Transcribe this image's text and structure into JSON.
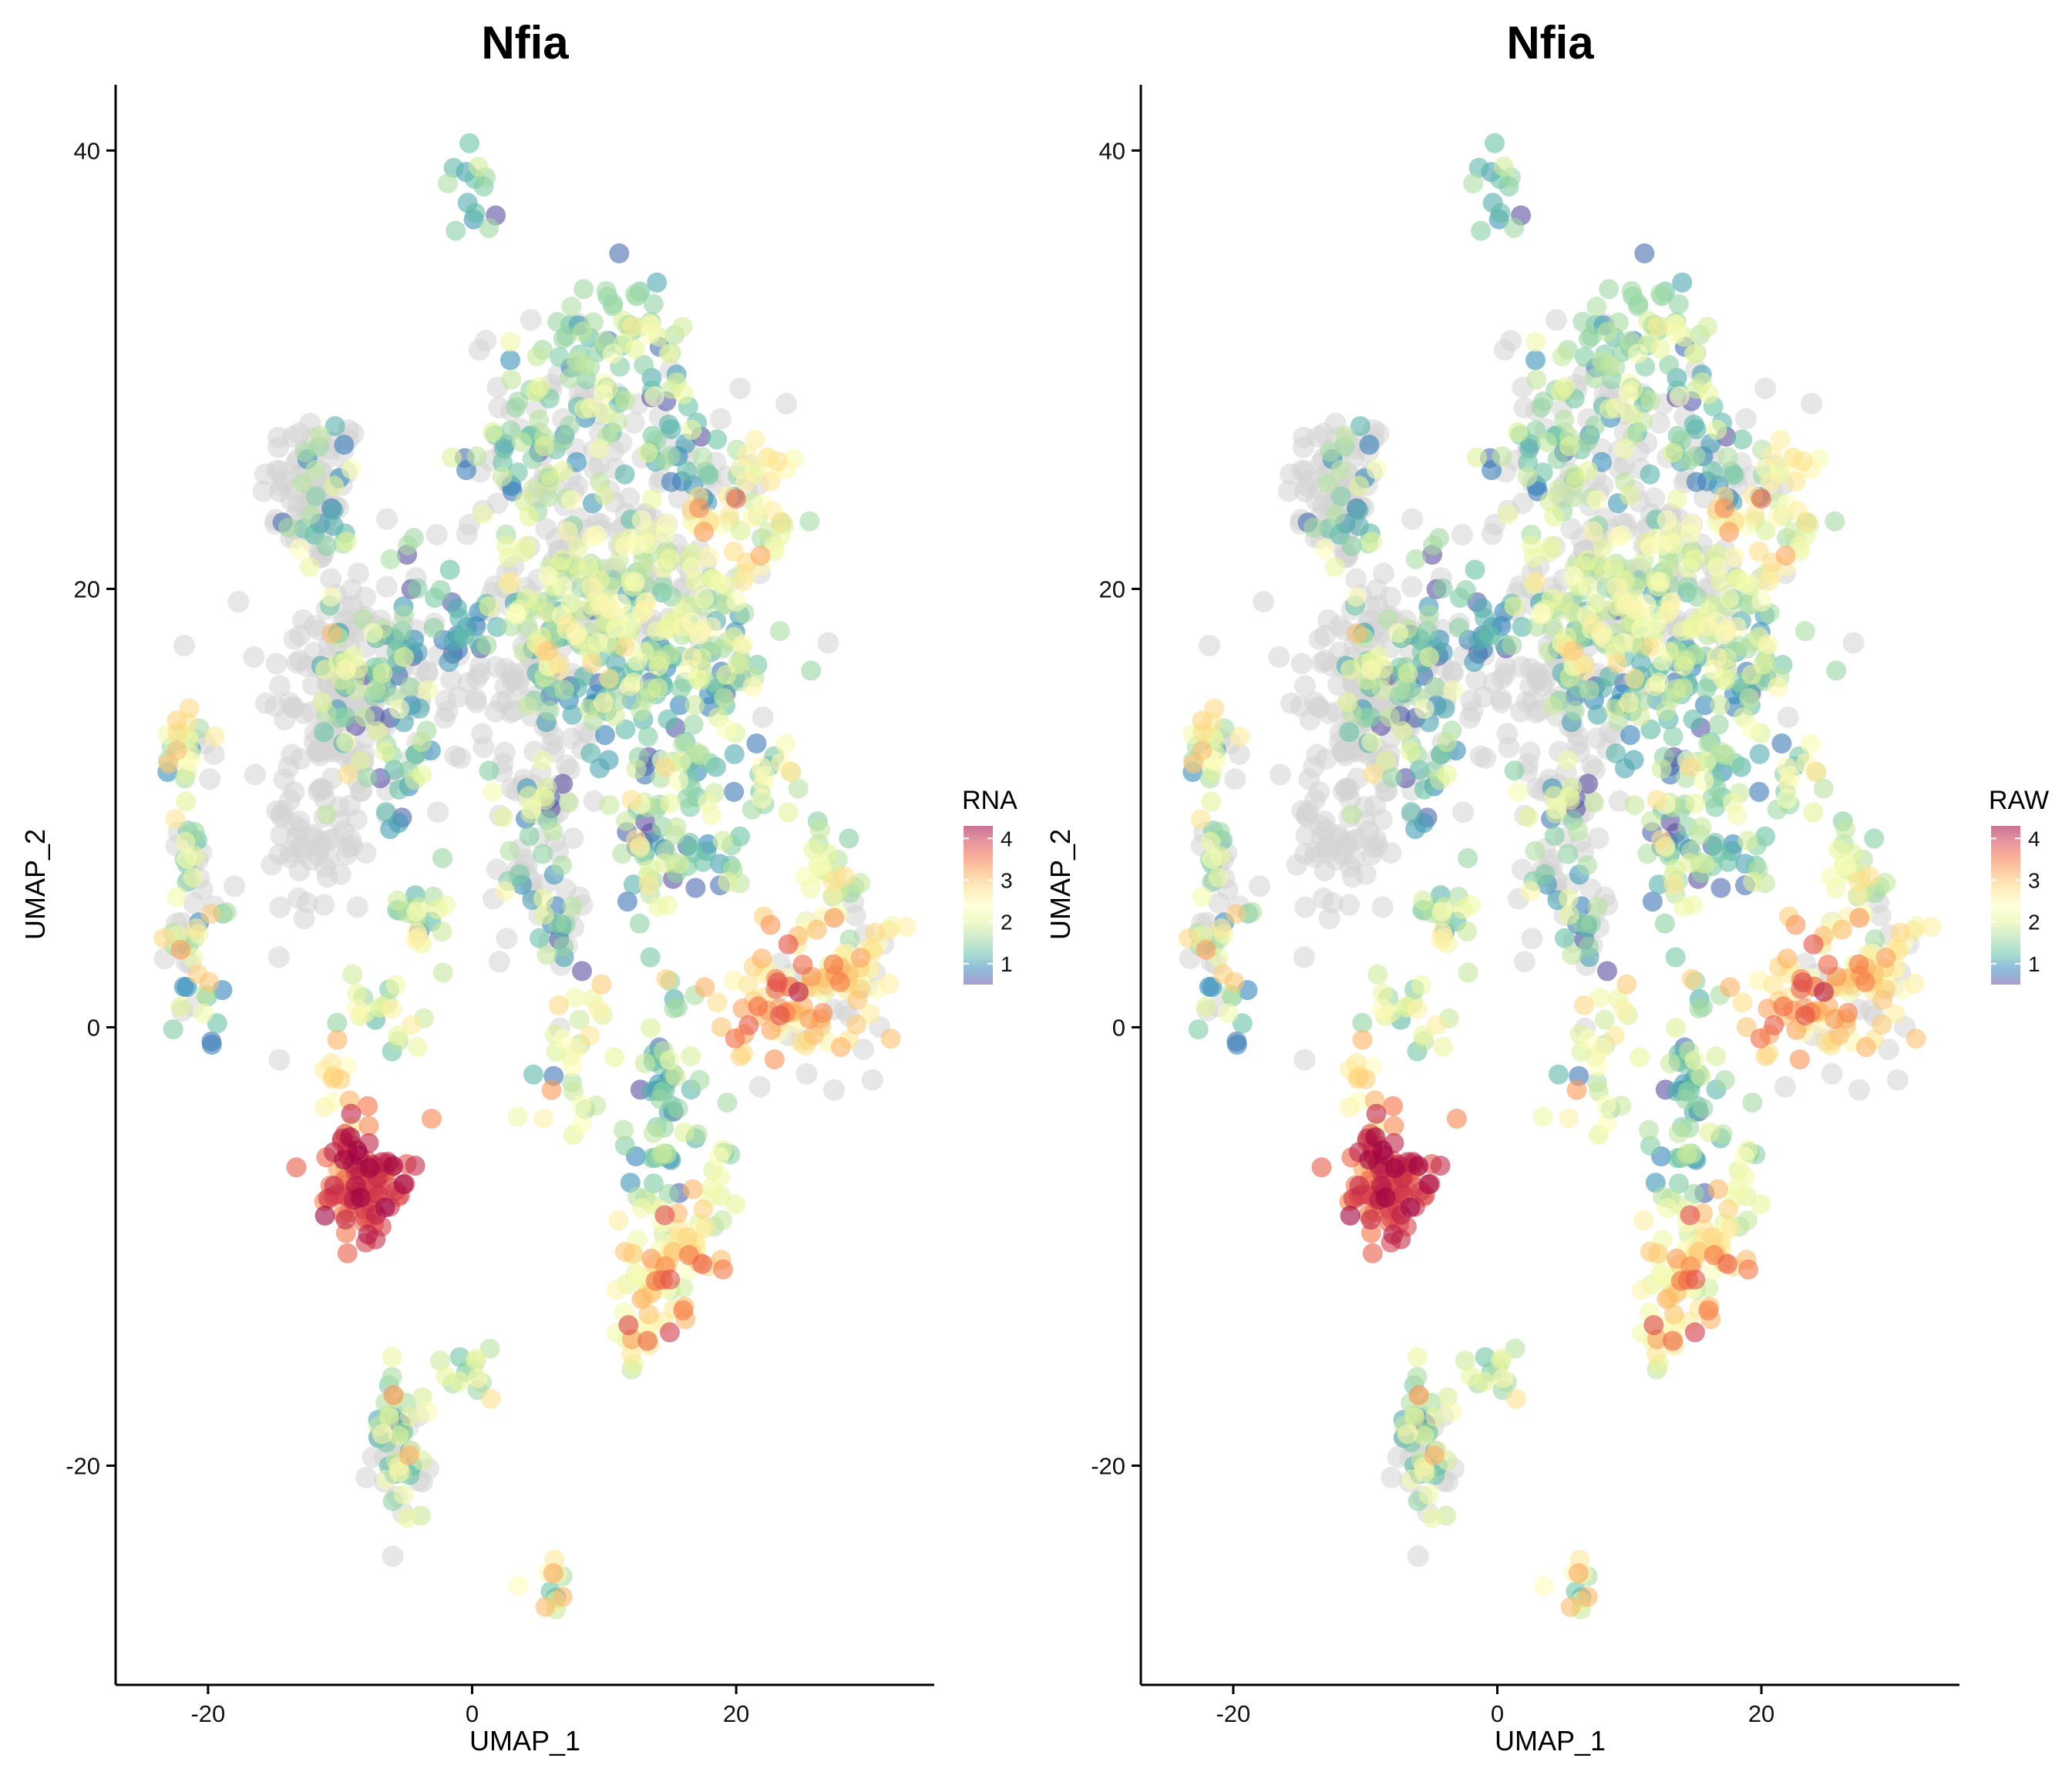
{
  "chart_data": [
    {
      "type": "scatter",
      "title": "Nfia",
      "xlabel": "UMAP_1",
      "ylabel": "UMAP_2",
      "xlim": [
        -27,
        35
      ],
      "ylim": [
        -30,
        43
      ],
      "xticks": [
        -20,
        0,
        20
      ],
      "yticks": [
        -20,
        0,
        20,
        40
      ],
      "legend": {
        "title": "RNA",
        "ticks": [
          1,
          2,
          3,
          4
        ],
        "range": [
          0.5,
          4.3
        ],
        "placement": "right"
      },
      "colormap": [
        "#5e4fa2",
        "#3288bd",
        "#66c2a5",
        "#abdda4",
        "#e6f598",
        "#ffffbf",
        "#fee08b",
        "#fdae61",
        "#f46d43",
        "#d53e4f",
        "#9e0142"
      ],
      "background_color": "#d3d3d3",
      "grid": false,
      "clusters": [
        {
          "cx": 0.3,
          "cy": 38,
          "sx": 0.9,
          "sy": 0.8,
          "n": 14,
          "mean": 1.3,
          "sd": 0.4
        },
        {
          "cx": 9.5,
          "cy": 30.5,
          "sx": 2.2,
          "sy": 2.2,
          "n": 55,
          "mean": 1.5,
          "sd": 0.5
        },
        {
          "cx": 13.5,
          "cy": 31.5,
          "sx": 1.5,
          "sy": 1.3,
          "n": 18,
          "mean": 1.7,
          "sd": 0.5
        },
        {
          "cx": 4.5,
          "cy": 26.5,
          "sx": 2.3,
          "sy": 2.5,
          "n": 60,
          "mean": 1.5,
          "sd": 0.5
        },
        {
          "cx": 15.5,
          "cy": 27,
          "sx": 1.8,
          "sy": 1.5,
          "n": 30,
          "mean": 1.2,
          "sd": 0.4
        },
        {
          "cx": 20.5,
          "cy": 23.5,
          "sx": 2.2,
          "sy": 2.5,
          "n": 55,
          "mean": 2.5,
          "sd": 0.5
        },
        {
          "cx": 12.5,
          "cy": 19.5,
          "sx": 4.2,
          "sy": 2.2,
          "n": 150,
          "mean": 2.0,
          "sd": 0.4
        },
        {
          "cx": 13.5,
          "cy": 15.5,
          "sx": 3.8,
          "sy": 1.8,
          "n": 90,
          "mean": 1.2,
          "sd": 0.4
        },
        {
          "cx": 5.8,
          "cy": 18.2,
          "sx": 2.0,
          "sy": 1.8,
          "n": 45,
          "mean": 1.8,
          "sd": 0.5
        },
        {
          "cx": 19.5,
          "cy": 16.5,
          "sx": 1.5,
          "sy": 2.0,
          "n": 25,
          "mean": 1.6,
          "sd": 0.5
        },
        {
          "cx": -5.5,
          "cy": 16.5,
          "sx": 1.8,
          "sy": 2.2,
          "n": 50,
          "mean": 1.4,
          "sd": 0.5
        },
        {
          "cx": -1.0,
          "cy": 18.0,
          "sx": 1.2,
          "sy": 1.0,
          "n": 20,
          "mean": 1.0,
          "sd": 0.3
        },
        {
          "cx": -9.5,
          "cy": 15.0,
          "sx": 1.3,
          "sy": 2.0,
          "n": 30,
          "mean": 1.8,
          "sd": 0.5
        },
        {
          "cx": -11.5,
          "cy": 23.5,
          "sx": 1.3,
          "sy": 2.3,
          "n": 28,
          "mean": 1.5,
          "sd": 0.5
        },
        {
          "cx": -5.5,
          "cy": 12.0,
          "sx": 1.0,
          "sy": 1.5,
          "n": 18,
          "mean": 1.3,
          "sd": 0.4
        },
        {
          "cx": 13.5,
          "cy": 9.0,
          "sx": 1.6,
          "sy": 2.0,
          "n": 45,
          "mean": 1.5,
          "sd": 0.5
        },
        {
          "cx": 17.5,
          "cy": 9.5,
          "sx": 1.6,
          "sy": 2.0,
          "n": 40,
          "mean": 1.4,
          "sd": 0.5
        },
        {
          "cx": 22.5,
          "cy": 11.5,
          "sx": 1.0,
          "sy": 1.0,
          "n": 16,
          "mean": 2.3,
          "sd": 0.5
        },
        {
          "cx": 27.0,
          "cy": 7.0,
          "sx": 1.5,
          "sy": 1.5,
          "n": 25,
          "mean": 2.0,
          "sd": 0.5
        },
        {
          "cx": 5.0,
          "cy": 8.5,
          "sx": 1.3,
          "sy": 2.2,
          "n": 30,
          "mean": 1.6,
          "sd": 0.5
        },
        {
          "cx": 6.5,
          "cy": 4.5,
          "sx": 0.8,
          "sy": 1.0,
          "n": 10,
          "mean": 1.3,
          "sd": 0.4
        },
        {
          "cx": 24.0,
          "cy": 1.5,
          "sx": 2.2,
          "sy": 1.8,
          "n": 70,
          "mean": 3.1,
          "sd": 0.4
        },
        {
          "cx": 28.5,
          "cy": 2.5,
          "sx": 1.8,
          "sy": 1.8,
          "n": 40,
          "mean": 2.7,
          "sd": 0.4
        },
        {
          "cx": -22.0,
          "cy": 12.5,
          "sx": 0.9,
          "sy": 1.3,
          "n": 22,
          "mean": 2.0,
          "sd": 0.8
        },
        {
          "cx": -21.5,
          "cy": 8.5,
          "sx": 0.6,
          "sy": 1.2,
          "n": 12,
          "mean": 1.6,
          "sd": 0.4
        },
        {
          "cx": -21.0,
          "cy": 3.5,
          "sx": 1.1,
          "sy": 1.6,
          "n": 28,
          "mean": 2.1,
          "sd": 0.7
        },
        {
          "cx": -3.5,
          "cy": 5.0,
          "sx": 1.3,
          "sy": 1.6,
          "n": 22,
          "mean": 1.8,
          "sd": 0.5
        },
        {
          "cx": -6.5,
          "cy": 0.5,
          "sx": 1.8,
          "sy": 0.9,
          "n": 20,
          "mean": 2.0,
          "sd": 0.4
        },
        {
          "cx": -10.5,
          "cy": -2.5,
          "sx": 1.0,
          "sy": 1.3,
          "n": 14,
          "mean": 2.6,
          "sd": 0.5
        },
        {
          "cx": -8.5,
          "cy": -7.0,
          "sx": 1.5,
          "sy": 1.3,
          "n": 110,
          "mean": 3.8,
          "sd": 0.35
        },
        {
          "cx": 8.0,
          "cy": -1.0,
          "sx": 1.5,
          "sy": 1.8,
          "n": 30,
          "mean": 2.0,
          "sd": 0.5
        },
        {
          "cx": 14.5,
          "cy": -3.5,
          "sx": 1.2,
          "sy": 3.0,
          "n": 60,
          "mean": 1.4,
          "sd": 0.5
        },
        {
          "cx": 18.5,
          "cy": -6.5,
          "sx": 0.8,
          "sy": 1.5,
          "n": 12,
          "mean": 1.8,
          "sd": 0.4
        },
        {
          "cx": 15.5,
          "cy": -10.0,
          "sx": 1.6,
          "sy": 1.5,
          "n": 55,
          "mean": 2.7,
          "sd": 0.5
        },
        {
          "cx": 13.0,
          "cy": -13.5,
          "sx": 1.6,
          "sy": 1.4,
          "n": 35,
          "mean": 2.4,
          "sd": 0.6
        },
        {
          "cx": -5.5,
          "cy": -18.5,
          "sx": 1.0,
          "sy": 1.8,
          "n": 40,
          "mean": 1.8,
          "sd": 0.6
        },
        {
          "cx": -0.5,
          "cy": -15.8,
          "sx": 1.0,
          "sy": 1.0,
          "n": 14,
          "mean": 1.7,
          "sd": 0.5
        },
        {
          "cx": 6.0,
          "cy": -24.8,
          "sx": 0.8,
          "sy": 0.8,
          "n": 12,
          "mean": 2.0,
          "sd": 0.5
        }
      ],
      "background_clusters": [
        {
          "cx": -12.0,
          "cy": 24.5,
          "sx": 2.0,
          "sy": 1.8,
          "n": 70
        },
        {
          "cx": -10.5,
          "cy": 16.0,
          "sx": 2.8,
          "sy": 3.0,
          "n": 90
        },
        {
          "cx": -11.5,
          "cy": 9.0,
          "sx": 2.0,
          "sy": 2.5,
          "n": 70
        },
        {
          "cx": -4.5,
          "cy": 15.5,
          "sx": 3.0,
          "sy": 3.0,
          "n": 60
        },
        {
          "cx": 4.5,
          "cy": 16.0,
          "sx": 2.0,
          "sy": 2.2,
          "n": 50
        },
        {
          "cx": 5.0,
          "cy": 8.0,
          "sx": 1.8,
          "sy": 2.8,
          "n": 50
        },
        {
          "cx": 13.0,
          "cy": 21.5,
          "sx": 5.0,
          "sy": 3.5,
          "n": 120
        },
        {
          "cx": 6.0,
          "cy": 26.0,
          "sx": 3.0,
          "sy": 3.0,
          "n": 50
        },
        {
          "cx": 27.0,
          "cy": 2.0,
          "sx": 2.5,
          "sy": 2.5,
          "n": 30
        },
        {
          "cx": -21.0,
          "cy": 7.0,
          "sx": 1.0,
          "sy": 4.0,
          "n": 25
        },
        {
          "cx": -5.5,
          "cy": -19.5,
          "sx": 1.0,
          "sy": 1.2,
          "n": 20
        }
      ]
    },
    {
      "type": "scatter",
      "title": "Nfia",
      "xlabel": "UMAP_1",
      "ylabel": "UMAP_2",
      "xlim": [
        -27,
        35
      ],
      "ylim": [
        -30,
        43
      ],
      "xticks": [
        -20,
        0,
        20
      ],
      "yticks": [
        -20,
        0,
        20,
        40
      ],
      "legend": {
        "title": "RAW",
        "ticks": [
          1,
          2,
          3,
          4
        ],
        "range": [
          0.5,
          4.3
        ],
        "placement": "right"
      },
      "same_data_as": 0
    }
  ]
}
